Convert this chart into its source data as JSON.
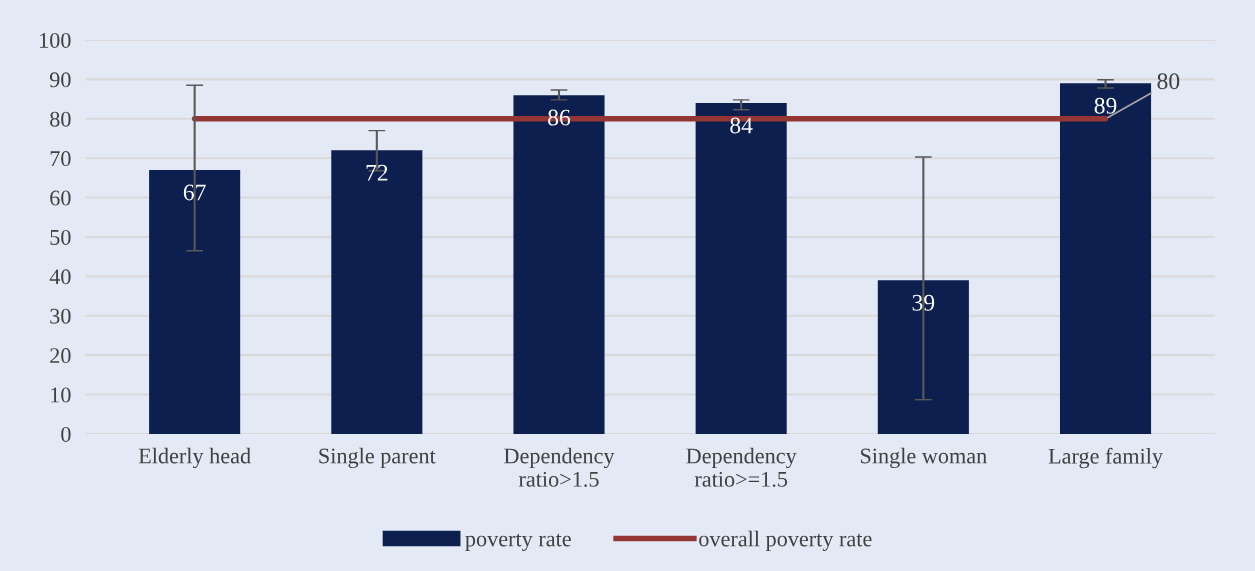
{
  "chart_data": {
    "type": "bar",
    "categories": [
      "Elderly head",
      "Single parent",
      "Dependency\nratio>1.5",
      "Dependency\nratio>=1.5",
      "Single woman",
      "Large family"
    ],
    "series": [
      {
        "name": "poverty rate",
        "color": "#0d1f4f",
        "values": [
          67,
          72,
          86,
          84,
          39,
          89
        ],
        "data_labels": true,
        "errors": [
          [
            46.5,
            88.5
          ],
          [
            66.8,
            77
          ],
          [
            84.8,
            87.3
          ],
          [
            82.3,
            84.8
          ],
          [
            8.7,
            70.3
          ],
          [
            87.8,
            89.9
          ]
        ]
      },
      {
        "name": "overall poverty rate",
        "type": "line",
        "color": "#943634",
        "values": [
          80,
          80,
          80,
          80,
          80,
          80
        ],
        "value_labels": [
          null,
          null,
          null,
          null,
          null,
          "80"
        ]
      }
    ],
    "ylim": [
      0,
      100
    ],
    "yticks": [
      0,
      10,
      20,
      30,
      40,
      50,
      60,
      70,
      80,
      90,
      100
    ],
    "grid": "y",
    "legend": "bottom"
  }
}
